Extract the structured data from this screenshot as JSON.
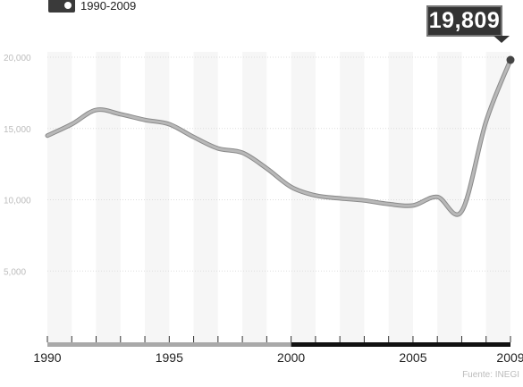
{
  "header": {
    "subtitle": "1990-2009",
    "logo_icon": "map-icon"
  },
  "callout": {
    "value": "19,809"
  },
  "source": "Fuente: INEGI",
  "colors": {
    "line": "#b8b8b8",
    "line_stroke": "#8a8a8a",
    "callout_bg": "#333333",
    "axis_early": "#a9a9a9",
    "axis_late": "#111111",
    "grid": "#dddddd"
  },
  "chart_data": {
    "type": "line",
    "title": "",
    "xlabel": "",
    "ylabel": "",
    "xlim": [
      1990,
      2009
    ],
    "ylim": [
      0,
      20000
    ],
    "yticks": [
      {
        "value": 5000,
        "label": "5,000"
      },
      {
        "value": 10000,
        "label": "10,000"
      },
      {
        "value": 15000,
        "label": "15,000"
      },
      {
        "value": 20000,
        "label": "20,000"
      }
    ],
    "xticks": [
      {
        "value": 1990,
        "label": "1990"
      },
      {
        "value": 1995,
        "label": "1995"
      },
      {
        "value": 2000,
        "label": "2000"
      },
      {
        "value": 2005,
        "label": "2005"
      },
      {
        "value": 2009,
        "label": "2009"
      }
    ],
    "minor_xticks": [
      1990,
      1991,
      1992,
      1993,
      1994,
      1995,
      1996,
      1997,
      1998,
      1999,
      2000,
      2001,
      2002,
      2003,
      2004,
      2005,
      2006,
      2007,
      2008,
      2009
    ],
    "grid": true,
    "series": [
      {
        "x": [
          1990,
          1991,
          1992,
          1993,
          1994,
          1995,
          1996,
          1997,
          1998,
          1999,
          2000,
          2001,
          2002,
          2003,
          2004,
          2005,
          2006,
          2007,
          2008,
          2009
        ],
        "y": [
          14500,
          15300,
          16300,
          16000,
          15600,
          15300,
          14400,
          13600,
          13300,
          12200,
          10900,
          10300,
          10100,
          9950,
          9700,
          9600,
          10200,
          9200,
          15500,
          19809
        ]
      }
    ],
    "highlight": {
      "x": 2009,
      "y": 19809,
      "label": "19,809"
    }
  }
}
